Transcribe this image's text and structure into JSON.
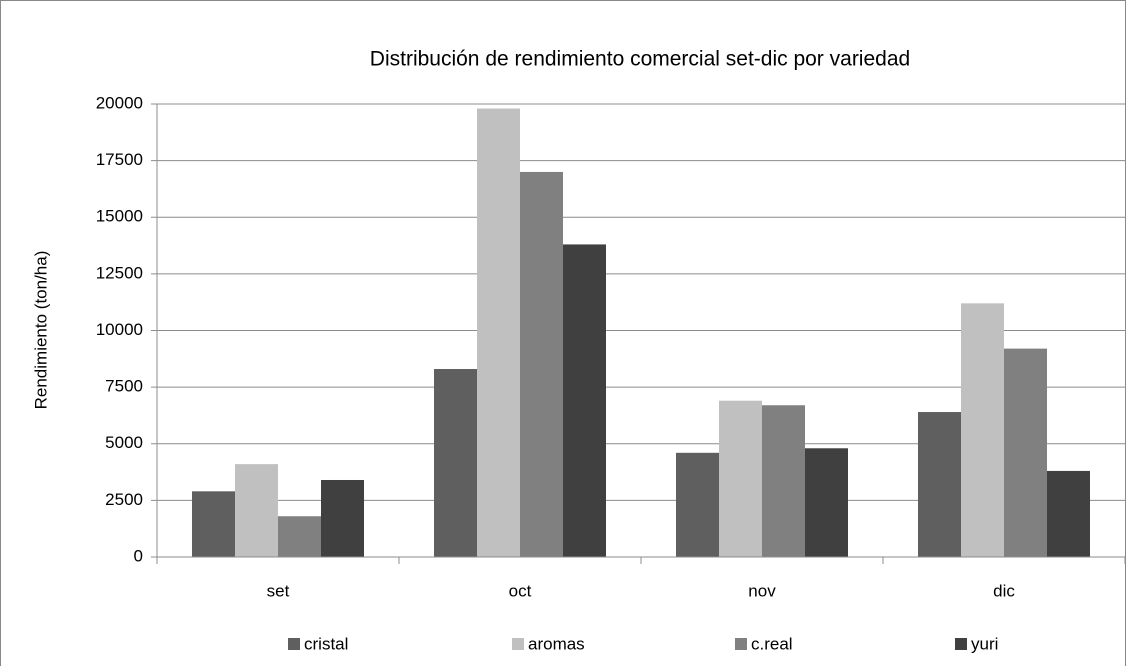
{
  "chart_data": {
    "type": "bar",
    "title": "Distribución de rendimiento comercial set-dic por variedad",
    "y_label": "Rendimiento (ton/ha)",
    "categories": [
      "set",
      "oct",
      "nov",
      "dic"
    ],
    "series": [
      {
        "name": "cristal",
        "color": "#5f5f5f",
        "values": [
          2900,
          8300,
          4600,
          6400
        ]
      },
      {
        "name": "aromas",
        "color": "#c0c0c0",
        "values": [
          4100,
          19800,
          6900,
          11200
        ]
      },
      {
        "name": "c.real",
        "color": "#808080",
        "values": [
          1800,
          17000,
          6700,
          9200
        ]
      },
      {
        "name": "yuri",
        "color": "#404040",
        "values": [
          3400,
          13800,
          4800,
          3800
        ]
      }
    ],
    "ylim": [
      0,
      20000
    ],
    "yticks": [
      0,
      2500,
      5000,
      7500,
      10000,
      12500,
      15000,
      17500,
      20000
    ],
    "grid": true,
    "legend": "bottom"
  }
}
